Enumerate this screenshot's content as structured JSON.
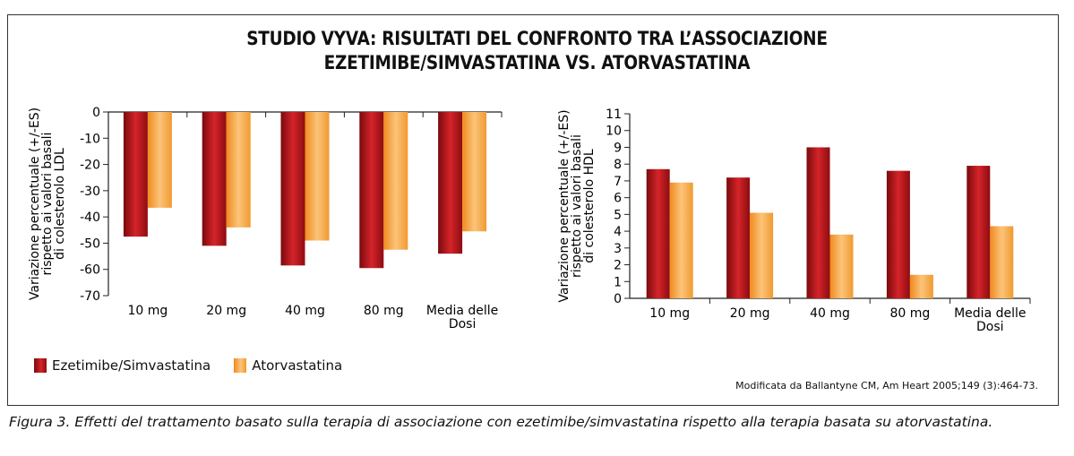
{
  "title_line1": "STUDIO VYVA: RISULTATI DEL CONFRONTO TRA L’ASSOCIAZIONE",
  "title_line2": "EZETIMIBE/SIMVASTATINA VS. ATORVASTATINA",
  "colors": {
    "ezetimibe": "#c0161b",
    "atorvastatina": "#f6a847"
  },
  "chart_data": [
    {
      "type": "bar",
      "ylabel": [
        "Variazione percentuale (+/-ES)",
        "rispetto ai valori basali",
        "di colesterolo LDL"
      ],
      "categories": [
        "10 mg",
        "20 mg",
        "40 mg",
        "80 mg",
        "Media delle Dosi"
      ],
      "category_lines": [
        [
          "10 mg"
        ],
        [
          "20 mg"
        ],
        [
          "40 mg"
        ],
        [
          "80 mg"
        ],
        [
          "Media delle",
          "Dosi"
        ]
      ],
      "ylim": [
        -70,
        0
      ],
      "yticks": [
        0,
        -10,
        -20,
        -30,
        -40,
        -50,
        -60,
        -70
      ],
      "series": [
        {
          "name": "Ezetimibe/Simvastatina",
          "values": [
            -47.5,
            -51,
            -58.5,
            -59.5,
            -54
          ]
        },
        {
          "name": "Atorvastatina",
          "values": [
            -36.5,
            -44,
            -49,
            -52.5,
            -45.5
          ]
        }
      ]
    },
    {
      "type": "bar",
      "ylabel": [
        "Variazione percentuale (+/-ES)",
        "rispetto ai valori basali",
        "di colesterolo HDL"
      ],
      "categories": [
        "10 mg",
        "20 mg",
        "40 mg",
        "80 mg",
        "Media delle Dosi"
      ],
      "category_lines": [
        [
          "10 mg"
        ],
        [
          "20 mg"
        ],
        [
          "40 mg"
        ],
        [
          "80 mg"
        ],
        [
          "Media delle",
          "Dosi"
        ]
      ],
      "ylim": [
        0,
        11
      ],
      "yticks": [
        0,
        1,
        2,
        3,
        4,
        5,
        6,
        7,
        8,
        9,
        10,
        11
      ],
      "series": [
        {
          "name": "Ezetimibe/Simvastatina",
          "values": [
            7.7,
            7.2,
            9,
            7.6,
            7.9
          ]
        },
        {
          "name": "Atorvastatina",
          "values": [
            6.9,
            5.1,
            3.8,
            1.4,
            4.3
          ]
        }
      ]
    }
  ],
  "legend": [
    {
      "label": "Ezetimibe/Simvastatina"
    },
    {
      "label": "Atorvastatina"
    }
  ],
  "source": "Modificata da Ballantyne CM, Am Heart 2005;149 (3):464-73.",
  "caption": "Figura 3. Effetti del trattamento basato sulla terapia di associazione con ezetimibe/simvastatina rispetto alla terapia basata su atorvastatina."
}
